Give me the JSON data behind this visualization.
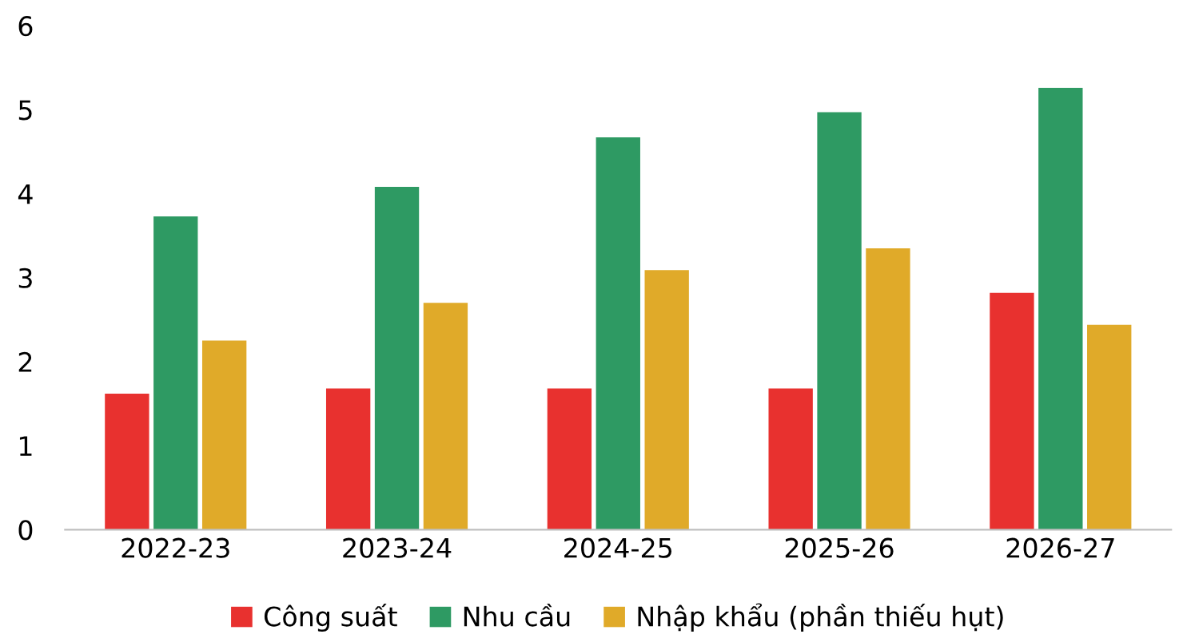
{
  "chart_data": {
    "type": "bar",
    "categories": [
      "2022-23",
      "2023-24",
      "2024-25",
      "2025-26",
      "2026-27"
    ],
    "series": [
      {
        "name": "Công suất",
        "color": "#e8312f",
        "values": [
          1.62,
          1.68,
          1.68,
          1.68,
          2.82
        ]
      },
      {
        "name": "Nhu cầu",
        "color": "#2e9a63",
        "values": [
          3.73,
          4.08,
          4.67,
          4.97,
          5.26
        ]
      },
      {
        "name": "Nhập khẩu (phần thiếu hụt)",
        "color": "#e0aa29",
        "values": [
          2.25,
          2.7,
          3.09,
          3.35,
          2.44
        ]
      }
    ],
    "ylim": [
      0,
      6
    ],
    "yticks": [
      0,
      1,
      2,
      3,
      4,
      5,
      6
    ],
    "grid": false,
    "legend": "bottom"
  }
}
